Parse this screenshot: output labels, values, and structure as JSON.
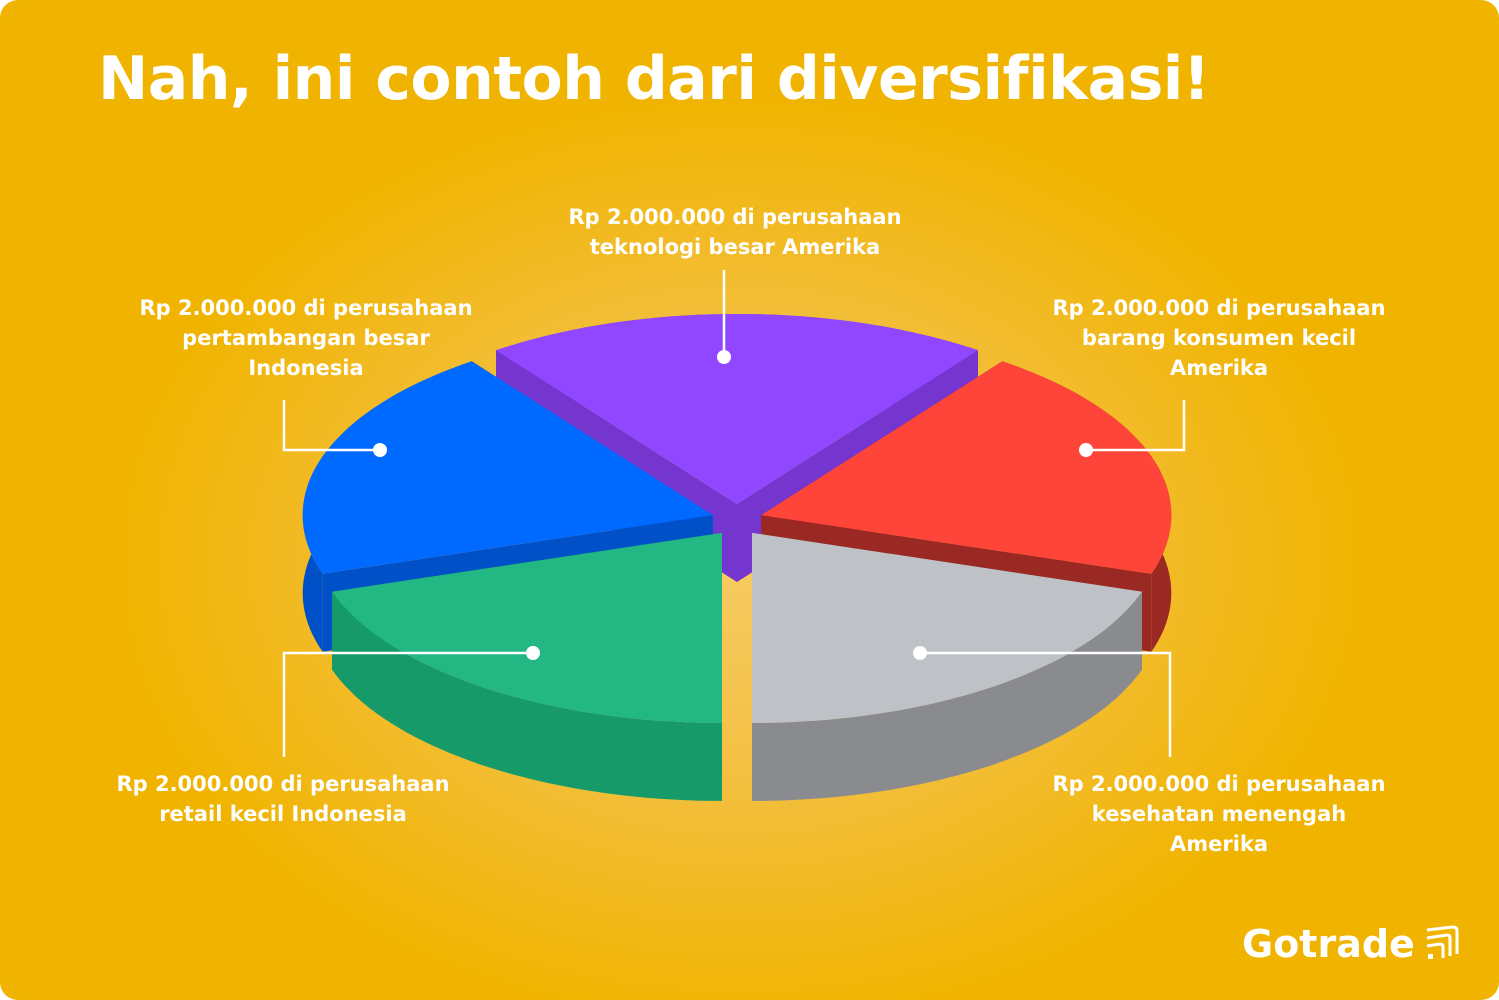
{
  "title": "Nah, ini contoh dari diversifikasi!",
  "chart_data": {
    "type": "pie",
    "style": "3d-exploded",
    "title": "Nah, ini contoh dari diversifikasi!",
    "categories": [
      "Rp 2.000.000 di perusahaan teknologi besar Amerika",
      "Rp 2.000.000 di perusahaan barang konsumen kecil Amerika",
      "Rp 2.000.000 di perusahaan kesehatan menengah Amerika",
      "Rp 2.000.000 di perusahaan retail kecil Indonesia",
      "Rp 2.000.000 di perusahaan pertambangan besar Indonesia"
    ],
    "values": [
      2000000,
      2000000,
      2000000,
      2000000,
      2000000
    ],
    "slices": [
      {
        "label_lines": [
          "Rp 2.000.000 di perusahaan",
          "teknologi besar Amerika"
        ],
        "color": "#9146ff",
        "side_color": "#7436cf"
      },
      {
        "label_lines": [
          "Rp 2.000.000 di perusahaan",
          "barang konsumen kecil",
          "Amerika"
        ],
        "color": "#ff4539",
        "side_color": "#9a2823"
      },
      {
        "label_lines": [
          "Rp 2.000.000 di perusahaan",
          "kesehatan menengah",
          "Amerika"
        ],
        "color": "#bec1c5",
        "side_color": "#898b8f"
      },
      {
        "label_lines": [
          "Rp 2.000.000 di perusahaan",
          "retail kecil Indonesia"
        ],
        "color": "#22b783",
        "side_color": "#179a69"
      },
      {
        "label_lines": [
          "Rp 2.000.000 di perusahaan",
          "pertambangan besar",
          "Indonesia"
        ],
        "color": "#0069ff",
        "side_color": "#0050c8"
      }
    ],
    "legend": "none",
    "grid": false
  },
  "brand": {
    "name": "Gotrade",
    "icon": "gotrade-logo-icon"
  },
  "colors": {
    "background": "#f0b400",
    "text": "#ffffff"
  }
}
